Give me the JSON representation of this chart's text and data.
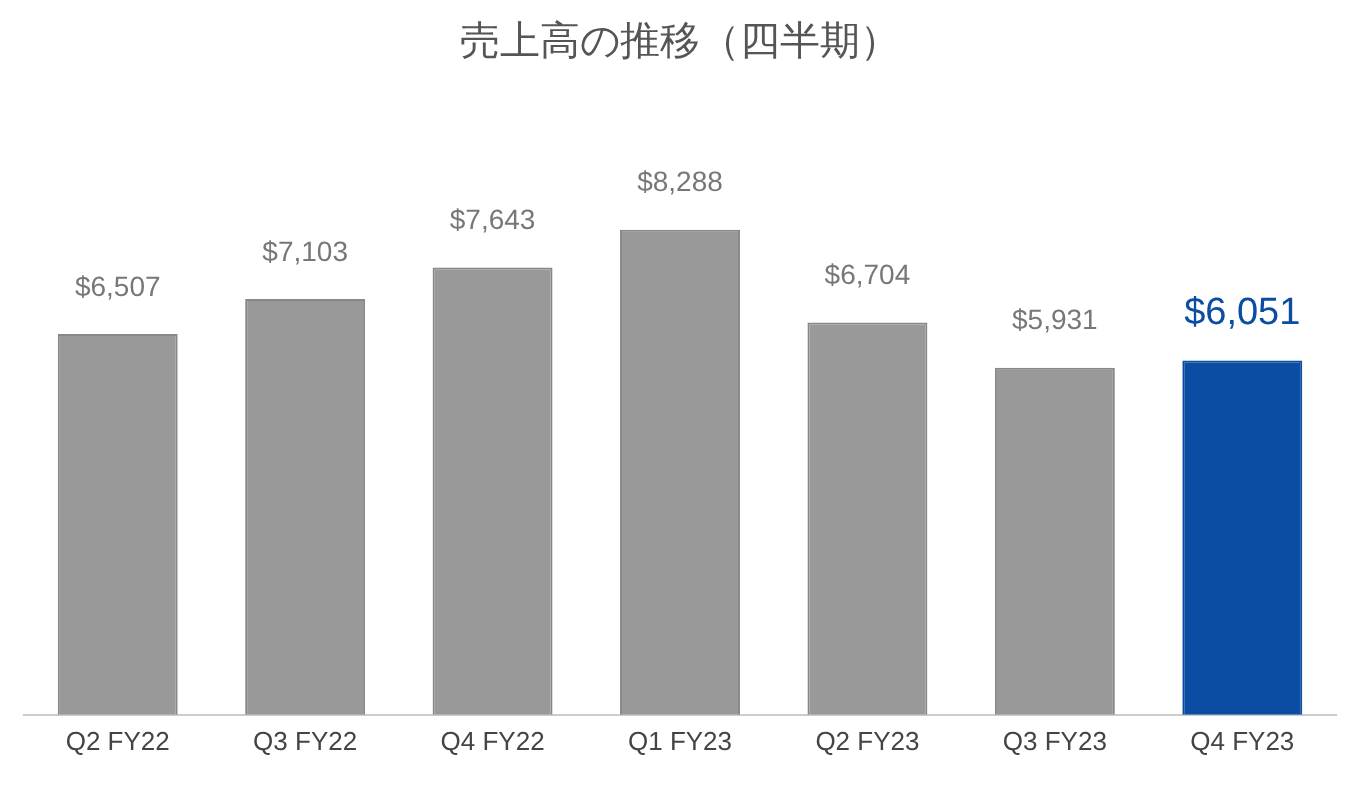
{
  "chart_data": {
    "type": "bar",
    "title": "売上高の推移（四半期）",
    "categories": [
      "Q2 FY22",
      "Q3 FY22",
      "Q4 FY22",
      "Q1 FY23",
      "Q2 FY23",
      "Q3 FY23",
      "Q4 FY23"
    ],
    "values": [
      6507,
      7103,
      7643,
      8288,
      6704,
      5931,
      6051
    ],
    "colors": [
      "#999999",
      "#999999",
      "#999999",
      "#999999",
      "#999999",
      "#999999",
      "#0b4da2"
    ],
    "value_labels": [
      "$6,507",
      "$7,103",
      "$7,643",
      "$8,288",
      "$6,704",
      "$5,931",
      "$6,051"
    ],
    "grid": false,
    "legend": false
  }
}
